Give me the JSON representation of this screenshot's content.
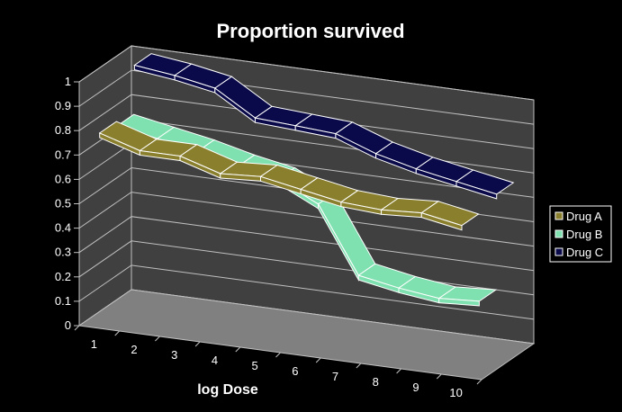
{
  "chart_data": {
    "type": "line",
    "style": "3d-line",
    "title": "Proportion survived",
    "xlabel": "log Dose",
    "ylabel": "",
    "categories": [
      "1",
      "2",
      "3",
      "4",
      "5",
      "6",
      "7",
      "8",
      "9",
      "10"
    ],
    "y_ticks": [
      "0",
      "0.1",
      "0.2",
      "0.3",
      "0.4",
      "0.5",
      "0.6",
      "0.7",
      "0.8",
      "0.9",
      "1"
    ],
    "ylim": [
      0,
      1
    ],
    "grid": true,
    "legend_position": "right",
    "series": [
      {
        "name": "Drug A",
        "color": "#8a7f2c",
        "values": [
          0.8,
          0.75,
          0.75,
          0.7,
          0.71,
          0.68,
          0.65,
          0.64,
          0.65,
          0.62
        ]
      },
      {
        "name": "Drug B",
        "color": "#7fe0b0",
        "values": [
          0.78,
          0.75,
          0.72,
          0.68,
          0.65,
          0.57,
          0.3,
          0.27,
          0.25,
          0.26
        ]
      },
      {
        "name": "Drug C",
        "color": "#0a0a4a",
        "values": [
          0.98,
          0.96,
          0.93,
          0.83,
          0.82,
          0.81,
          0.75,
          0.71,
          0.68,
          0.65
        ]
      }
    ],
    "colors": {
      "background": "#000000",
      "walls": "#404040",
      "floor": "#808080",
      "gridlines": "#c0c0c0",
      "line_outline": "#ffffff"
    }
  }
}
